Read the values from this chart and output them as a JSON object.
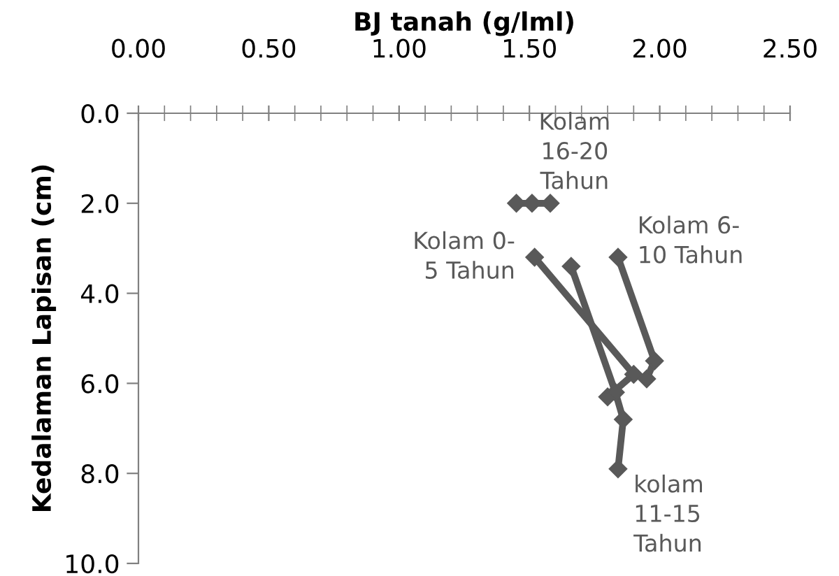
{
  "chart_data": {
    "type": "line",
    "xlabel": "BJ tanah (g/lml)",
    "ylabel": "Kedalaman Lapisan (cm)",
    "xlim": [
      0,
      2.5
    ],
    "xticks": [
      {
        "value": 0,
        "label": "0.00"
      },
      {
        "value": 0.5,
        "label": "0.50"
      },
      {
        "value": 1,
        "label": "1.00"
      },
      {
        "value": 1.5,
        "label": "1.50"
      },
      {
        "value": 2,
        "label": "2.00"
      },
      {
        "value": 2.5,
        "label": "2.50"
      }
    ],
    "ylim": [
      10,
      0
    ],
    "yticks": [
      {
        "value": 0,
        "label": "0.0"
      },
      {
        "value": 2,
        "label": "2.0"
      },
      {
        "value": 4,
        "label": "4.0"
      },
      {
        "value": 6,
        "label": "6.0"
      },
      {
        "value": 8,
        "label": "8.0"
      },
      {
        "value": 10,
        "label": "10.0"
      }
    ],
    "marker": "diamond",
    "line_style": "solid",
    "grid": false,
    "legend": false,
    "series": [
      {
        "name": "Kolam 0-\n5 Tahun",
        "color": "#595959",
        "x": [
          1.52,
          1.9,
          1.8
        ],
        "values": [
          3.2,
          5.8,
          6.3
        ]
      },
      {
        "name": "Kolam 6-\n10 Tahun",
        "color": "#595959",
        "x": [
          1.84,
          1.98,
          1.95
        ],
        "values": [
          3.2,
          5.5,
          5.9
        ]
      },
      {
        "name": "kolam\n11-15\nTahun",
        "color": "#595959",
        "x": [
          1.66,
          1.83,
          1.86,
          1.84
        ],
        "values": [
          3.4,
          6.2,
          6.8,
          7.9
        ]
      },
      {
        "name": "Kolam\n16-20\nTahun",
        "color": "#595959",
        "x": [
          1.45,
          1.51,
          1.58
        ],
        "values": [
          2.0,
          2.0,
          2.0
        ]
      }
    ]
  }
}
